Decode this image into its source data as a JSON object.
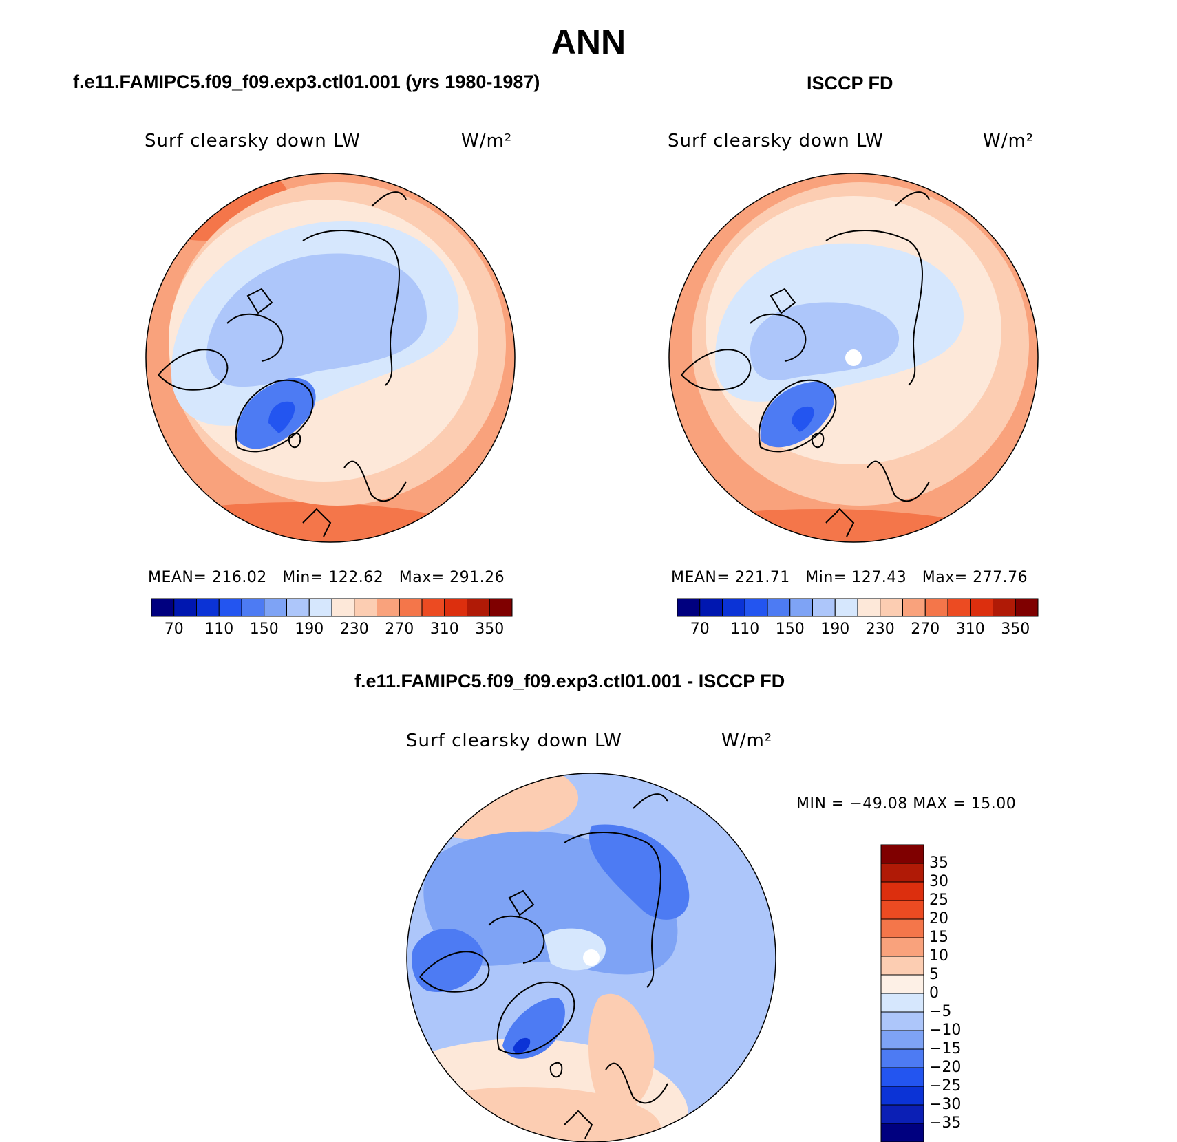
{
  "page": {
    "title": "ANN",
    "colors": {
      "abs_scale": [
        "#00007f",
        "#0017b0",
        "#0b33d6",
        "#2355f0",
        "#4d7bf3",
        "#7ea3f5",
        "#adc6fa",
        "#d6e7fd",
        "#fde8d9",
        "#fccdb2",
        "#f9a27c",
        "#f4764a",
        "#ec4b22",
        "#dc2f0e",
        "#b01a06",
        "#7f0000"
      ],
      "diff_scale": [
        "#00007f",
        "#0b1fb5",
        "#0b33d6",
        "#2355f0",
        "#4d7bf3",
        "#7ea3f5",
        "#adc6fa",
        "#d6e7fd",
        "#fdf0e6",
        "#fccdb2",
        "#f9a27c",
        "#f4764a",
        "#ec4b22",
        "#dc2f0e",
        "#b01a06",
        "#7f0000"
      ]
    }
  },
  "chart_data": [
    {
      "type": "heatmap",
      "title": "f.e11.FAMIPC5.f09_f09.exp3.ctl01.001 (yrs 1980-1987)",
      "variable_label": "Surf clearsky down LW",
      "units_label": "W/m²",
      "projection": "north polar stereographic",
      "stats": {
        "mean_label": "MEAN=",
        "mean": "216.02",
        "min_label": "Min=",
        "min": "122.62",
        "max_label": "Max=",
        "max": "291.26"
      },
      "colorbar": {
        "orientation": "horizontal",
        "tick_labels": [
          "70",
          "110",
          "150",
          "190",
          "230",
          "270",
          "310",
          "350"
        ]
      }
    },
    {
      "type": "heatmap",
      "title": "ISCCP FD",
      "variable_label": "Surf clearsky down LW",
      "units_label": "W/m²",
      "projection": "north polar stereographic",
      "stats": {
        "mean_label": "MEAN=",
        "mean": "221.71",
        "min_label": "Min=",
        "min": "127.43",
        "max_label": "Max=",
        "max": "277.76"
      },
      "colorbar": {
        "orientation": "horizontal",
        "tick_labels": [
          "70",
          "110",
          "150",
          "190",
          "230",
          "270",
          "310",
          "350"
        ]
      }
    },
    {
      "type": "heatmap",
      "title": "f.e11.FAMIPC5.f09_f09.exp3.ctl01.001 - ISCCP FD",
      "variable_label": "Surf clearsky down LW",
      "units_label": "W/m²",
      "projection": "north polar stereographic",
      "stats": {
        "text": "MIN = −49.08 MAX =  15.00"
      },
      "colorbar": {
        "orientation": "vertical",
        "tick_labels": [
          "35",
          "30",
          "25",
          "20",
          "15",
          "10",
          "5",
          "0",
          "−5",
          "−10",
          "−15",
          "−20",
          "−25",
          "−30",
          "−35"
        ]
      }
    }
  ]
}
